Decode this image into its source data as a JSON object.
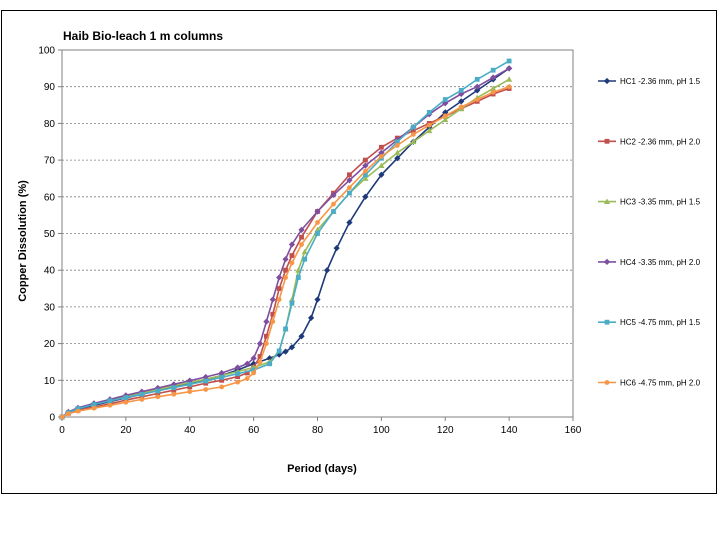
{
  "chart_data": {
    "type": "line",
    "title": "Haib Bio-leach 1 m columns",
    "xlabel": "Period (days)",
    "ylabel": "Copper Dissolution (%)",
    "xlim": [
      0,
      160
    ],
    "ylim": [
      0,
      100
    ],
    "x_ticks": [
      "0",
      "20",
      "40",
      "60",
      "80",
      "100",
      "120",
      "140",
      "160"
    ],
    "y_ticks": [
      "0",
      "10",
      "20",
      "30",
      "40",
      "50",
      "60",
      "70",
      "80",
      "90",
      "100"
    ],
    "grid": "horizontal dashed",
    "legend_position": "right",
    "series": [
      {
        "name": "HC1 -2.36 mm, pH 1.5",
        "color": "#1f3a7a",
        "marker": "diamond",
        "points": [
          [
            0,
            0
          ],
          [
            2,
            1.2
          ],
          [
            5,
            2.2
          ],
          [
            10,
            3.2
          ],
          [
            15,
            4.2
          ],
          [
            20,
            5.2
          ],
          [
            25,
            6.2
          ],
          [
            30,
            7.2
          ],
          [
            35,
            8.2
          ],
          [
            40,
            9.2
          ],
          [
            45,
            10.2
          ],
          [
            50,
            11.3
          ],
          [
            55,
            12.8
          ],
          [
            60,
            14.5
          ],
          [
            65,
            16
          ],
          [
            68,
            17
          ],
          [
            70,
            17.8
          ],
          [
            72,
            19
          ],
          [
            75,
            22
          ],
          [
            78,
            27
          ],
          [
            80,
            32
          ],
          [
            83,
            40
          ],
          [
            86,
            46
          ],
          [
            90,
            53
          ],
          [
            95,
            60
          ],
          [
            100,
            66
          ],
          [
            105,
            70.5
          ],
          [
            110,
            75
          ],
          [
            115,
            79
          ],
          [
            120,
            83
          ],
          [
            125,
            86
          ],
          [
            130,
            89
          ],
          [
            135,
            92
          ],
          [
            140,
            95
          ]
        ]
      },
      {
        "name": "HC2 -2.36 mm, pH 2.0",
        "color": "#c0504d",
        "marker": "square",
        "points": [
          [
            0,
            0
          ],
          [
            2,
            1
          ],
          [
            5,
            1.8
          ],
          [
            10,
            2.7
          ],
          [
            15,
            3.6
          ],
          [
            20,
            4.6
          ],
          [
            25,
            5.5
          ],
          [
            30,
            6.4
          ],
          [
            35,
            7.3
          ],
          [
            40,
            8.2
          ],
          [
            45,
            9.2
          ],
          [
            50,
            10
          ],
          [
            55,
            11
          ],
          [
            58,
            12
          ],
          [
            60,
            13.5
          ],
          [
            62,
            16.5
          ],
          [
            64,
            22
          ],
          [
            66,
            28
          ],
          [
            68,
            35
          ],
          [
            70,
            40
          ],
          [
            72,
            44
          ],
          [
            75,
            49
          ],
          [
            80,
            56
          ],
          [
            85,
            61
          ],
          [
            90,
            66
          ],
          [
            95,
            70
          ],
          [
            100,
            73.5
          ],
          [
            105,
            76
          ],
          [
            110,
            78
          ],
          [
            115,
            80
          ],
          [
            120,
            82
          ],
          [
            125,
            84
          ],
          [
            130,
            86
          ],
          [
            135,
            88
          ],
          [
            140,
            89.5
          ]
        ]
      },
      {
        "name": "HC3 -3.35 mm, pH 1.5",
        "color": "#9bbb59",
        "marker": "triangle",
        "points": [
          [
            0,
            0
          ],
          [
            2,
            1.3
          ],
          [
            5,
            2.4
          ],
          [
            10,
            3.5
          ],
          [
            15,
            4.6
          ],
          [
            20,
            5.6
          ],
          [
            25,
            6.6
          ],
          [
            30,
            7.5
          ],
          [
            35,
            8.5
          ],
          [
            40,
            9.4
          ],
          [
            45,
            10.3
          ],
          [
            50,
            11.3
          ],
          [
            55,
            12.4
          ],
          [
            60,
            13.5
          ],
          [
            65,
            15
          ],
          [
            68,
            18
          ],
          [
            70,
            24
          ],
          [
            72,
            32
          ],
          [
            74,
            40
          ],
          [
            76,
            45
          ],
          [
            80,
            51
          ],
          [
            85,
            56
          ],
          [
            90,
            61
          ],
          [
            95,
            65
          ],
          [
            100,
            68.5
          ],
          [
            105,
            72
          ],
          [
            110,
            75
          ],
          [
            115,
            78
          ],
          [
            120,
            81
          ],
          [
            125,
            84
          ],
          [
            130,
            87
          ],
          [
            135,
            89.5
          ],
          [
            140,
            92
          ]
        ]
      },
      {
        "name": "HC4 -3.35 mm, pH 2.0",
        "color": "#7f4f9f",
        "marker": "diamond",
        "points": [
          [
            0,
            0
          ],
          [
            2,
            1.4
          ],
          [
            5,
            2.5
          ],
          [
            10,
            3.7
          ],
          [
            15,
            4.8
          ],
          [
            20,
            5.9
          ],
          [
            25,
            6.9
          ],
          [
            30,
            7.9
          ],
          [
            35,
            8.9
          ],
          [
            40,
            9.9
          ],
          [
            45,
            10.9
          ],
          [
            50,
            12
          ],
          [
            55,
            13.5
          ],
          [
            58,
            14.5
          ],
          [
            60,
            16
          ],
          [
            62,
            20
          ],
          [
            64,
            26
          ],
          [
            66,
            32
          ],
          [
            68,
            38
          ],
          [
            70,
            43
          ],
          [
            72,
            47
          ],
          [
            75,
            51
          ],
          [
            80,
            56
          ],
          [
            85,
            60.5
          ],
          [
            90,
            64.5
          ],
          [
            95,
            68.5
          ],
          [
            100,
            72
          ],
          [
            105,
            75.5
          ],
          [
            110,
            79
          ],
          [
            115,
            82.5
          ],
          [
            120,
            85.5
          ],
          [
            125,
            88
          ],
          [
            130,
            90
          ],
          [
            135,
            92.5
          ],
          [
            140,
            95
          ]
        ]
      },
      {
        "name": "HC5 -4.75 mm, pH 1.5",
        "color": "#4bacc6",
        "marker": "square",
        "points": [
          [
            0,
            0
          ],
          [
            2,
            1.2
          ],
          [
            5,
            2.3
          ],
          [
            10,
            3.4
          ],
          [
            15,
            4.4
          ],
          [
            20,
            5.3
          ],
          [
            25,
            6.2
          ],
          [
            30,
            7.1
          ],
          [
            35,
            8
          ],
          [
            40,
            8.9
          ],
          [
            45,
            9.8
          ],
          [
            50,
            10.8
          ],
          [
            55,
            11.8
          ],
          [
            60,
            12.8
          ],
          [
            65,
            14.5
          ],
          [
            68,
            18
          ],
          [
            70,
            24
          ],
          [
            72,
            31
          ],
          [
            74,
            38
          ],
          [
            76,
            43
          ],
          [
            80,
            50
          ],
          [
            85,
            56
          ],
          [
            90,
            61
          ],
          [
            95,
            66
          ],
          [
            100,
            70.5
          ],
          [
            105,
            75
          ],
          [
            110,
            79
          ],
          [
            115,
            83
          ],
          [
            120,
            86.5
          ],
          [
            125,
            89
          ],
          [
            130,
            92
          ],
          [
            135,
            94.5
          ],
          [
            140,
            97
          ]
        ]
      },
      {
        "name": "HC6 -4.75 mm, pH 2.0",
        "color": "#f79646",
        "marker": "circle",
        "points": [
          [
            0,
            0
          ],
          [
            2,
            0.9
          ],
          [
            5,
            1.6
          ],
          [
            10,
            2.4
          ],
          [
            15,
            3.2
          ],
          [
            20,
            4
          ],
          [
            25,
            4.8
          ],
          [
            30,
            5.5
          ],
          [
            35,
            6.2
          ],
          [
            40,
            6.9
          ],
          [
            45,
            7.5
          ],
          [
            50,
            8.2
          ],
          [
            55,
            9.5
          ],
          [
            58,
            10.5
          ],
          [
            60,
            12
          ],
          [
            62,
            15
          ],
          [
            64,
            20
          ],
          [
            66,
            26
          ],
          [
            68,
            32
          ],
          [
            70,
            38
          ],
          [
            72,
            42
          ],
          [
            75,
            47
          ],
          [
            80,
            53
          ],
          [
            85,
            58
          ],
          [
            90,
            62.5
          ],
          [
            95,
            67
          ],
          [
            100,
            71
          ],
          [
            105,
            74
          ],
          [
            110,
            77
          ],
          [
            115,
            79.5
          ],
          [
            120,
            82
          ],
          [
            125,
            84.5
          ],
          [
            130,
            86.5
          ],
          [
            135,
            88.5
          ],
          [
            140,
            90
          ]
        ]
      }
    ]
  }
}
